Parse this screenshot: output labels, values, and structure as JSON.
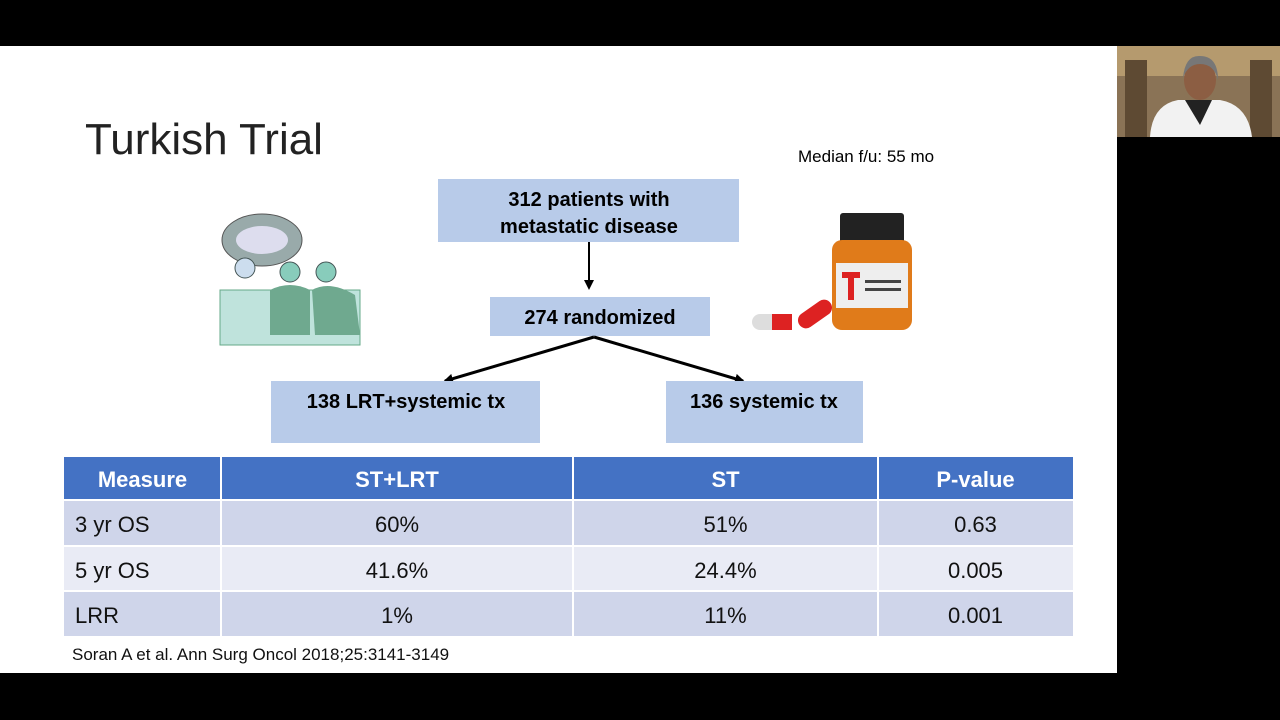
{
  "slide": {
    "title": "Turkish Trial",
    "follow_up": "Median f/u:  55 mo",
    "flow": {
      "enrolled": [
        "312 patients with",
        "metastatic disease"
      ],
      "randomized": "274 randomized",
      "arm_lrt": "138 LRT+systemic tx",
      "arm_st": "136 systemic tx"
    },
    "table": {
      "header": [
        "Measure",
        "ST+LRT",
        "ST",
        "P-value"
      ],
      "rows": [
        [
          "3 yr OS",
          "60%",
          "51%",
          "0.63"
        ],
        [
          "5 yr OS",
          "41.6%",
          "24.4%",
          "0.005"
        ],
        [
          "LRR",
          "1%",
          "11%",
          "0.001"
        ]
      ]
    },
    "citation": "Soran A et al. Ann Surg Oncol 2018;25:3141-3149"
  }
}
